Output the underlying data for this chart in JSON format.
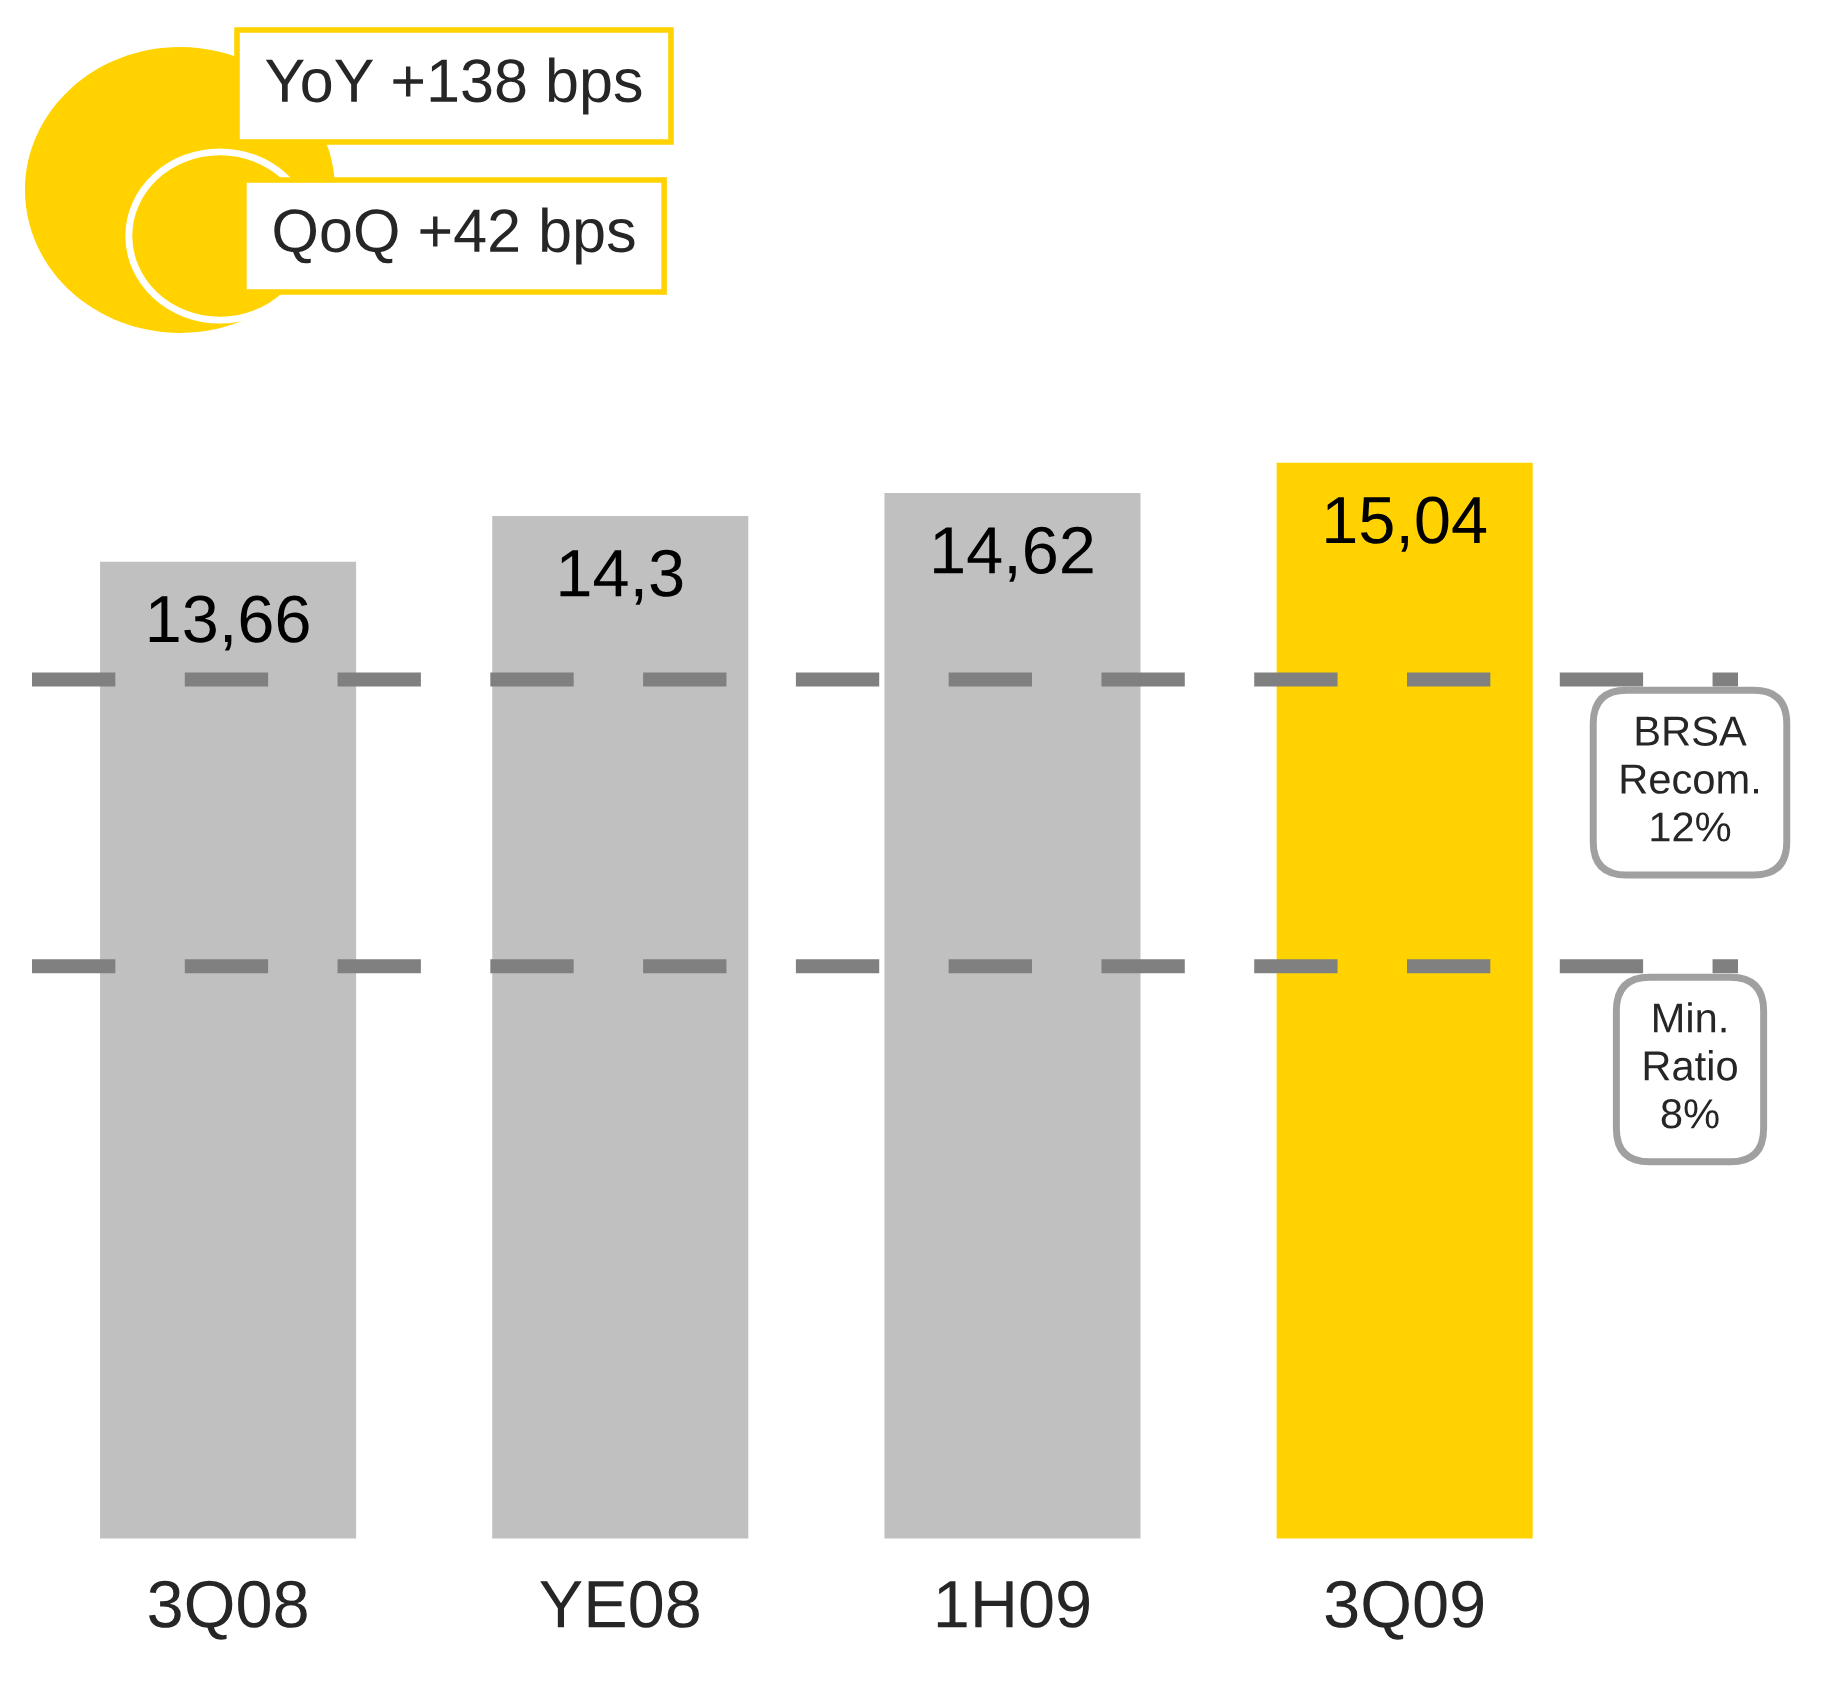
{
  "chart_data": {
    "type": "bar",
    "categories": [
      "3Q08",
      "YE08",
      "1H09",
      "3Q09"
    ],
    "values": [
      13.66,
      14.3,
      14.62,
      15.04
    ],
    "colors": [
      "#c0c0c0",
      "#c0c0c0",
      "#c0c0c0",
      "#ffd200"
    ],
    "value_labels": [
      "13,66",
      "14,3",
      "14,62",
      "15,04"
    ],
    "annotations": [
      "YoY +138 bps",
      "QoQ +42 bps"
    ],
    "ref_lines": [
      {
        "axis": "y",
        "value": 12,
        "label": "BRSA\nRecom.\n12%",
        "color": "#808080",
        "line_style": "dashed"
      },
      {
        "axis": "y",
        "value": 8,
        "label": "Min.\nRatio\n8%",
        "color": "#808080",
        "line_style": "dashed"
      }
    ],
    "grid": false,
    "legend": false
  }
}
